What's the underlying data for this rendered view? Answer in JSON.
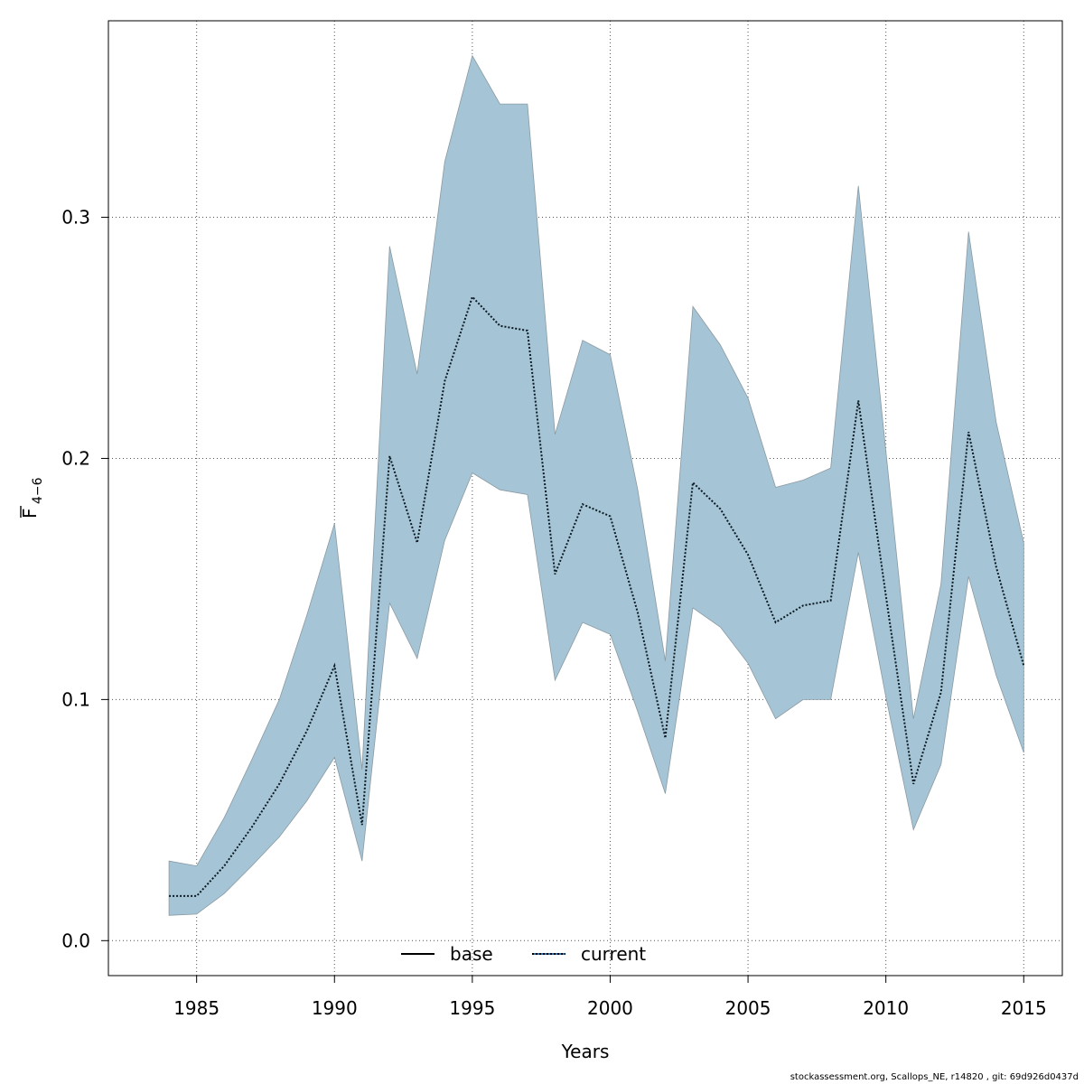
{
  "chart_data": {
    "type": "line",
    "title": "",
    "xlabel": "Years",
    "ylabel_main": "F",
    "ylabel_sub": "4−6",
    "xlim": [
      1981.8,
      2016.4
    ],
    "ylim": [
      -0.0145,
      0.3815
    ],
    "x_ticks": [
      1985,
      1990,
      1995,
      2000,
      2005,
      2010,
      2015
    ],
    "y_ticks": [
      0.0,
      0.1,
      0.2,
      0.3
    ],
    "y_tick_labels": [
      "0.0",
      "0.1",
      "0.2",
      "0.3"
    ],
    "grid": true,
    "legend_position": "bottom",
    "legend": [
      {
        "label": "base",
        "style": "solid",
        "color": "#000000"
      },
      {
        "label": "current",
        "style": "dotted",
        "color": "#000000",
        "accent": "#1f77b4"
      }
    ],
    "x": [
      1984,
      1985,
      1986,
      1987,
      1988,
      1989,
      1990,
      1991,
      1992,
      1993,
      1994,
      1995,
      1996,
      1997,
      1998,
      1999,
      2000,
      2001,
      2002,
      2003,
      2004,
      2005,
      2006,
      2007,
      2008,
      2009,
      2010,
      2011,
      2012,
      2013,
      2014,
      2015
    ],
    "series": [
      {
        "name": "current",
        "values": [
          0.0185,
          0.0185,
          0.031,
          0.047,
          0.065,
          0.087,
          0.114,
          0.048,
          0.201,
          0.165,
          0.232,
          0.267,
          0.255,
          0.253,
          0.152,
          0.181,
          0.176,
          0.136,
          0.084,
          0.19,
          0.179,
          0.16,
          0.132,
          0.139,
          0.141,
          0.224,
          0.143,
          0.065,
          0.103,
          0.211,
          0.155,
          0.114
        ],
        "lower": [
          0.0105,
          0.011,
          0.0195,
          0.031,
          0.043,
          0.058,
          0.076,
          0.033,
          0.14,
          0.117,
          0.166,
          0.194,
          0.187,
          0.185,
          0.108,
          0.132,
          0.127,
          0.095,
          0.061,
          0.138,
          0.13,
          0.115,
          0.092,
          0.1,
          0.1,
          0.161,
          0.101,
          0.046,
          0.073,
          0.151,
          0.11,
          0.078
        ],
        "upper": [
          0.033,
          0.031,
          0.051,
          0.075,
          0.1,
          0.135,
          0.173,
          0.071,
          0.288,
          0.235,
          0.323,
          0.367,
          0.347,
          0.347,
          0.21,
          0.249,
          0.243,
          0.187,
          0.116,
          0.263,
          0.247,
          0.225,
          0.188,
          0.191,
          0.196,
          0.313,
          0.203,
          0.092,
          0.148,
          0.294,
          0.215,
          0.165
        ]
      }
    ],
    "band_color": "#a5c4d5",
    "band_edge_color": "#8a9aa3"
  },
  "footer": "stockassessment.org, Scallops_NE, r14820 , git: 69d926d0437d"
}
